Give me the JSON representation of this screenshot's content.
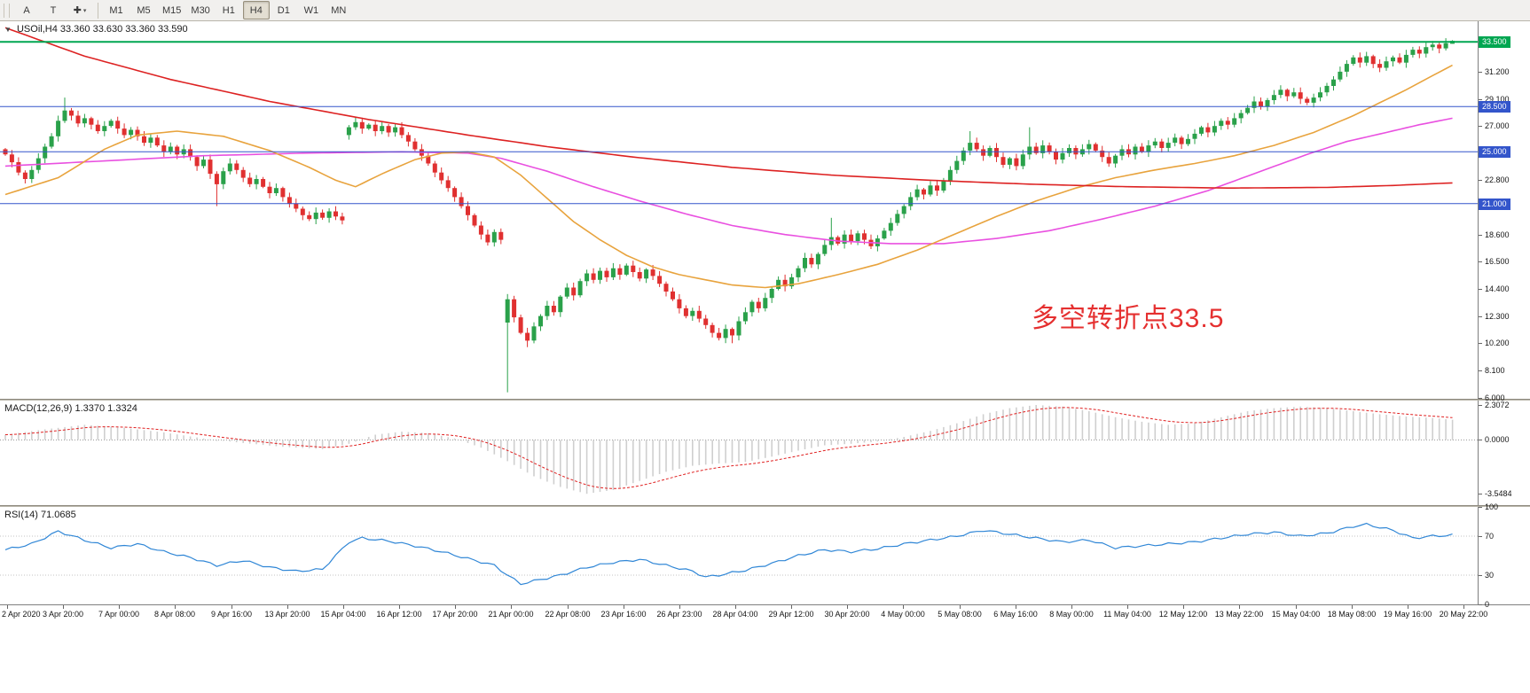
{
  "toolbar": {
    "buttons": [
      {
        "label": "A"
      },
      {
        "label": "T"
      },
      {
        "label": "✚",
        "caret": "▾"
      }
    ],
    "timeframes": [
      {
        "label": "M1",
        "active": false
      },
      {
        "label": "M5",
        "active": false
      },
      {
        "label": "M15",
        "active": false
      },
      {
        "label": "M30",
        "active": false
      },
      {
        "label": "H1",
        "active": false
      },
      {
        "label": "H4",
        "active": true
      },
      {
        "label": "D1",
        "active": false
      },
      {
        "label": "W1",
        "active": false
      },
      {
        "label": "MN",
        "active": false
      }
    ]
  },
  "price_panel": {
    "header_icon": "▼",
    "header": "USOil,H4  33.360 33.630 33.360 33.590",
    "annotation": {
      "text": "多空转折点33.5",
      "color": "#e53030"
    },
    "range": {
      "min": 5.9,
      "max": 35.1
    },
    "ticks": [
      {
        "v": 31.2,
        "t": "31.200"
      },
      {
        "v": 29.1,
        "t": "29.100"
      },
      {
        "v": 27.0,
        "t": "27.000"
      },
      {
        "v": 22.8,
        "t": "22.800"
      },
      {
        "v": 18.6,
        "t": "18.600"
      },
      {
        "v": 16.5,
        "t": "16.500"
      },
      {
        "v": 14.4,
        "t": "14.400"
      },
      {
        "v": 12.3,
        "t": "12.300"
      },
      {
        "v": 10.2,
        "t": "10.200"
      },
      {
        "v": 8.1,
        "t": "8.100"
      },
      {
        "v": 6.0,
        "t": "6.000"
      }
    ],
    "levels": [
      {
        "v": 33.5,
        "t": "33.500",
        "color": "#00a651",
        "width": 2
      },
      {
        "v": 28.5,
        "t": "28.500",
        "color": "#3355cb",
        "width": 1
      },
      {
        "v": 25.0,
        "t": "25.000",
        "color": "#3355cb",
        "width": 1
      },
      {
        "v": 21.0,
        "t": "21.000",
        "color": "#3355cb",
        "width": 1
      }
    ],
    "colors": {
      "bull": "#2aa14a",
      "bear": "#e03030",
      "ma_red": "#dd2222",
      "ma_orange": "#e8a33d",
      "ma_magenta": "#e950e0"
    }
  },
  "macd_panel": {
    "header": "MACD(12,26,9) 1.3370 1.3324",
    "range": {
      "min": -4.3,
      "max": 2.6
    },
    "ticks": [
      {
        "v": 2.3072,
        "t": "2.3072"
      },
      {
        "v": 0,
        "t": "0.0000"
      },
      {
        "v": -3.5484,
        "t": "-3.5484"
      }
    ],
    "colors": {
      "hist": "#cfcfcf",
      "signal": "#e02020"
    }
  },
  "rsi_panel": {
    "header": "RSI(14) 71.0685",
    "range": {
      "min": 0,
      "max": 100
    },
    "ticks": [
      {
        "v": 100,
        "t": "100"
      },
      {
        "v": 70,
        "t": "70"
      },
      {
        "v": 30,
        "t": "30"
      },
      {
        "v": 0,
        "t": "0"
      }
    ],
    "levels": [
      70,
      30
    ],
    "color": "#2f86d6"
  },
  "time_axis": {
    "labels": [
      "2 Apr 2020",
      "3 Apr 20:00",
      "7 Apr 00:00",
      "8 Apr 08:00",
      "9 Apr 16:00",
      "13 Apr 20:00",
      "15 Apr 04:00",
      "16 Apr 12:00",
      "17 Apr 20:00",
      "21 Apr 00:00",
      "22 Apr 08:00",
      "23 Apr 16:00",
      "26 Apr 23:00",
      "28 Apr 04:00",
      "29 Apr 12:00",
      "30 Apr 20:00",
      "4 May 00:00",
      "5 May 08:00",
      "6 May 16:00",
      "8 May 00:00",
      "11 May 04:00",
      "12 May 12:00",
      "13 May 22:00",
      "15 May 04:00",
      "18 May 08:00",
      "19 May 16:00",
      "20 May 22:00"
    ]
  },
  "chart_data": {
    "type": "candlestick",
    "symbol": "USOil",
    "timeframe": "H4",
    "last_ohlc": {
      "open": 33.36,
      "high": 33.63,
      "low": 33.36,
      "close": 33.59
    },
    "levels": {
      "green": 33.5,
      "blue": [
        28.5,
        25.0,
        21.0
      ]
    },
    "first_open": 25.2,
    "closes": [
      24.8,
      24.2,
      23.4,
      22.9,
      23.6,
      24.5,
      25.4,
      26.2,
      27.4,
      28.2,
      27.8,
      27.2,
      27.6,
      27.1,
      26.6,
      27.0,
      27.4,
      26.8,
      26.3,
      26.7,
      26.2,
      25.7,
      26.1,
      25.5,
      25.0,
      25.4,
      24.8,
      25.2,
      24.6,
      23.9,
      24.4,
      23.3,
      22.5,
      23.5,
      24.1,
      23.6,
      23.0,
      22.5,
      22.9,
      22.3,
      21.8,
      22.2,
      21.5,
      21.0,
      20.6,
      20.1,
      19.8,
      20.3,
      19.9,
      20.4,
      20.0,
      19.7,
      26.9,
      27.3,
      26.8,
      27.1,
      26.6,
      27.0,
      26.5,
      26.9,
      26.3,
      25.8,
      25.2,
      24.7,
      24.1,
      23.4,
      22.8,
      22.2,
      21.5,
      20.8,
      20.1,
      19.3,
      18.6,
      18.0,
      18.8,
      18.2,
      13.6,
      12.2,
      11.0,
      10.4,
      11.5,
      12.3,
      13.1,
      12.6,
      13.8,
      14.5,
      13.9,
      15.0,
      15.6,
      15.1,
      15.8,
      15.3,
      16.0,
      15.5,
      16.2,
      15.7,
      15.2,
      15.9,
      15.4,
      14.8,
      14.2,
      13.6,
      12.9,
      12.3,
      12.7,
      12.1,
      11.6,
      11.0,
      10.6,
      11.3,
      10.8,
      11.9,
      12.6,
      13.4,
      12.9,
      13.7,
      14.4,
      15.1,
      14.6,
      15.3,
      16.0,
      16.8,
      16.3,
      17.1,
      17.8,
      18.4,
      17.9,
      18.6,
      18.1,
      18.7,
      18.2,
      17.7,
      18.3,
      18.9,
      19.5,
      20.2,
      20.8,
      21.5,
      22.1,
      21.7,
      22.4,
      22.0,
      22.8,
      23.6,
      24.3,
      25.1,
      25.7,
      25.2,
      24.7,
      25.3,
      24.6,
      24.0,
      24.5,
      23.9,
      24.8,
      25.4,
      24.9,
      25.5,
      25.0,
      24.4,
      24.9,
      25.3,
      24.8,
      25.2,
      25.6,
      25.1,
      24.6,
      24.1,
      24.7,
      25.2,
      24.8,
      25.4,
      25.0,
      25.5,
      25.8,
      25.3,
      25.7,
      26.1,
      25.6,
      26.0,
      26.4,
      26.9,
      26.5,
      27.0,
      27.4,
      27.1,
      27.6,
      28.0,
      28.4,
      28.9,
      28.5,
      29.0,
      29.4,
      29.8,
      29.3,
      29.6,
      29.1,
      28.8,
      29.2,
      29.6,
      30.1,
      30.6,
      31.2,
      31.8,
      32.3,
      31.9,
      32.4,
      31.8,
      31.5,
      32.0,
      32.3,
      31.9,
      32.5,
      32.9,
      32.6,
      33.1,
      33.3,
      33.0,
      33.4,
      33.59
    ],
    "overrides": {
      "9": {
        "h": 29.2
      },
      "32": {
        "l": 20.8
      },
      "52": {
        "o": 26.3
      },
      "76": {
        "o": 11.8,
        "h": 14.0,
        "l": 6.4,
        "c": 13.6
      },
      "79": {
        "l": 9.9
      },
      "110": {
        "l": 10.2
      },
      "125": {
        "h": 19.9
      },
      "146": {
        "h": 26.6
      },
      "155": {
        "h": 26.9
      },
      "219": {
        "o": 33.36,
        "h": 33.63,
        "l": 33.36,
        "c": 33.59
      }
    },
    "ma_red": [
      [
        0,
        34.6
      ],
      [
        12,
        32.4
      ],
      [
        25,
        30.6
      ],
      [
        40,
        28.9
      ],
      [
        55,
        27.5
      ],
      [
        70,
        26.3
      ],
      [
        82,
        25.4
      ],
      [
        95,
        24.6
      ],
      [
        110,
        23.8
      ],
      [
        125,
        23.2
      ],
      [
        140,
        22.8
      ],
      [
        155,
        22.5
      ],
      [
        170,
        22.3
      ],
      [
        185,
        22.2
      ],
      [
        200,
        22.25
      ],
      [
        210,
        22.4
      ],
      [
        219,
        22.6
      ]
    ],
    "ma_orange": [
      [
        0,
        21.7
      ],
      [
        8,
        23.0
      ],
      [
        15,
        25.2
      ],
      [
        20,
        26.3
      ],
      [
        26,
        26.6
      ],
      [
        33,
        26.2
      ],
      [
        40,
        25.1
      ],
      [
        46,
        23.8
      ],
      [
        50,
        22.8
      ],
      [
        53,
        22.3
      ],
      [
        57,
        23.3
      ],
      [
        62,
        24.4
      ],
      [
        66,
        24.9
      ],
      [
        70,
        25.0
      ],
      [
        74,
        24.6
      ],
      [
        78,
        23.2
      ],
      [
        82,
        21.4
      ],
      [
        86,
        19.6
      ],
      [
        90,
        18.2
      ],
      [
        94,
        17.0
      ],
      [
        98,
        16.1
      ],
      [
        102,
        15.5
      ],
      [
        106,
        15.1
      ],
      [
        110,
        14.7
      ],
      [
        115,
        14.5
      ],
      [
        120,
        14.8
      ],
      [
        126,
        15.5
      ],
      [
        132,
        16.3
      ],
      [
        138,
        17.4
      ],
      [
        144,
        18.7
      ],
      [
        150,
        20.0
      ],
      [
        156,
        21.2
      ],
      [
        162,
        22.2
      ],
      [
        168,
        23.0
      ],
      [
        174,
        23.6
      ],
      [
        180,
        24.1
      ],
      [
        186,
        24.7
      ],
      [
        192,
        25.5
      ],
      [
        198,
        26.5
      ],
      [
        204,
        27.8
      ],
      [
        208,
        28.8
      ],
      [
        212,
        29.8
      ],
      [
        216,
        30.9
      ],
      [
        219,
        31.7
      ]
    ],
    "ma_magenta": [
      [
        0,
        23.9
      ],
      [
        15,
        24.3
      ],
      [
        30,
        24.7
      ],
      [
        45,
        24.9
      ],
      [
        60,
        25.0
      ],
      [
        70,
        24.9
      ],
      [
        75,
        24.5
      ],
      [
        82,
        23.5
      ],
      [
        89,
        22.3
      ],
      [
        96,
        21.2
      ],
      [
        103,
        20.2
      ],
      [
        110,
        19.3
      ],
      [
        118,
        18.6
      ],
      [
        126,
        18.1
      ],
      [
        134,
        17.9
      ],
      [
        142,
        17.9
      ],
      [
        150,
        18.3
      ],
      [
        158,
        18.9
      ],
      [
        166,
        19.8
      ],
      [
        174,
        20.8
      ],
      [
        182,
        22.0
      ],
      [
        190,
        23.5
      ],
      [
        197,
        24.8
      ],
      [
        203,
        25.8
      ],
      [
        209,
        26.5
      ],
      [
        214,
        27.1
      ],
      [
        219,
        27.6
      ]
    ],
    "macd": {
      "last_main": 1.337,
      "last_signal": 1.3324,
      "points": [
        [
          0,
          0.35
        ],
        [
          6,
          0.7
        ],
        [
          12,
          1.0
        ],
        [
          18,
          0.8
        ],
        [
          24,
          0.5
        ],
        [
          30,
          0.1
        ],
        [
          36,
          -0.2
        ],
        [
          42,
          -0.45
        ],
        [
          48,
          -0.6
        ],
        [
          52,
          -0.25
        ],
        [
          56,
          0.35
        ],
        [
          60,
          0.55
        ],
        [
          64,
          0.45
        ],
        [
          68,
          0.1
        ],
        [
          72,
          -0.5
        ],
        [
          76,
          -1.4
        ],
        [
          80,
          -2.4
        ],
        [
          84,
          -3.1
        ],
        [
          88,
          -3.55
        ],
        [
          92,
          -3.3
        ],
        [
          96,
          -2.7
        ],
        [
          100,
          -2.1
        ],
        [
          104,
          -1.7
        ],
        [
          108,
          -1.55
        ],
        [
          112,
          -1.45
        ],
        [
          116,
          -1.1
        ],
        [
          120,
          -0.7
        ],
        [
          124,
          -0.35
        ],
        [
          128,
          -0.25
        ],
        [
          132,
          -0.1
        ],
        [
          136,
          0.2
        ],
        [
          140,
          0.6
        ],
        [
          144,
          1.1
        ],
        [
          148,
          1.7
        ],
        [
          152,
          2.1
        ],
        [
          156,
          2.31
        ],
        [
          160,
          2.2
        ],
        [
          164,
          1.9
        ],
        [
          168,
          1.5
        ],
        [
          172,
          1.2
        ],
        [
          176,
          1.0
        ],
        [
          180,
          1.1
        ],
        [
          184,
          1.5
        ],
        [
          188,
          1.9
        ],
        [
          192,
          2.1
        ],
        [
          196,
          2.2
        ],
        [
          200,
          2.1
        ],
        [
          204,
          1.9
        ],
        [
          208,
          1.7
        ],
        [
          212,
          1.55
        ],
        [
          216,
          1.45
        ],
        [
          219,
          1.337
        ]
      ]
    },
    "rsi": {
      "last": 71.0685,
      "points": [
        [
          0,
          56
        ],
        [
          4,
          62
        ],
        [
          8,
          75
        ],
        [
          12,
          66
        ],
        [
          16,
          58
        ],
        [
          20,
          62
        ],
        [
          24,
          54
        ],
        [
          28,
          48
        ],
        [
          32,
          40
        ],
        [
          36,
          45
        ],
        [
          40,
          38
        ],
        [
          44,
          34
        ],
        [
          48,
          36
        ],
        [
          52,
          64
        ],
        [
          54,
          68
        ],
        [
          58,
          65
        ],
        [
          62,
          60
        ],
        [
          66,
          54
        ],
        [
          70,
          47
        ],
        [
          74,
          40
        ],
        [
          76,
          30
        ],
        [
          78,
          21
        ],
        [
          80,
          24
        ],
        [
          84,
          30
        ],
        [
          88,
          38
        ],
        [
          92,
          43
        ],
        [
          96,
          46
        ],
        [
          100,
          40
        ],
        [
          104,
          34
        ],
        [
          106,
          28
        ],
        [
          108,
          30
        ],
        [
          112,
          35
        ],
        [
          116,
          42
        ],
        [
          120,
          50
        ],
        [
          124,
          56
        ],
        [
          128,
          54
        ],
        [
          132,
          57
        ],
        [
          136,
          62
        ],
        [
          140,
          66
        ],
        [
          144,
          70
        ],
        [
          148,
          76
        ],
        [
          152,
          72
        ],
        [
          156,
          68
        ],
        [
          160,
          64
        ],
        [
          164,
          66
        ],
        [
          168,
          58
        ],
        [
          172,
          60
        ],
        [
          176,
          62
        ],
        [
          180,
          64
        ],
        [
          184,
          68
        ],
        [
          188,
          72
        ],
        [
          192,
          74
        ],
        [
          196,
          70
        ],
        [
          200,
          73
        ],
        [
          204,
          80
        ],
        [
          206,
          82
        ],
        [
          210,
          76
        ],
        [
          213,
          68
        ],
        [
          216,
          70
        ],
        [
          219,
          71
        ]
      ]
    }
  }
}
